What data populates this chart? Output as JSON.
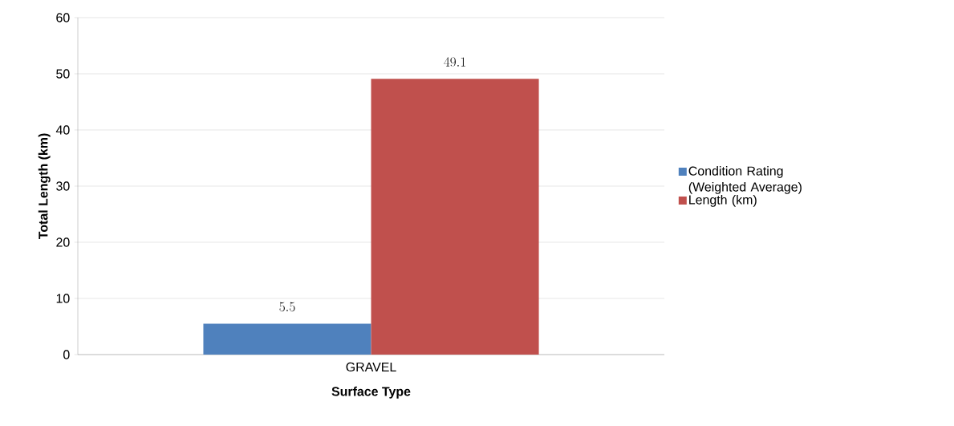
{
  "chart_data": {
    "type": "bar",
    "categories": [
      "GRAVEL"
    ],
    "series": [
      {
        "name": "Condition Rating (Weighted Average)",
        "color": "#4f81bd",
        "values": [
          5.5
        ]
      },
      {
        "name": "Length (km)",
        "color": "#c0504d",
        "values": [
          49.1
        ]
      }
    ],
    "xlabel": "Surface Type",
    "ylabel": "Total Length (km)",
    "ylim": [
      0,
      60
    ],
    "yticks": [
      0,
      10,
      20,
      30,
      40,
      50,
      60
    ],
    "grid": "y",
    "legend": "right",
    "data_labels": true
  }
}
